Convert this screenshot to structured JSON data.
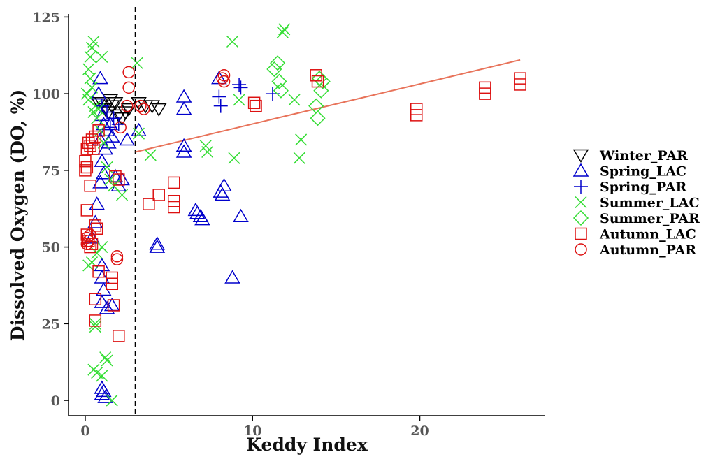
{
  "chart_data": {
    "type": "scatter",
    "title": "",
    "xlabel": "Keddy Index",
    "ylabel": "Dissolved Oxygen (DO, %)",
    "xlim": [
      -1,
      27.5
    ],
    "ylim": [
      -5,
      126
    ],
    "xticks": [
      0,
      10,
      20
    ],
    "yticks": [
      0,
      25,
      50,
      75,
      100,
      125
    ],
    "grid": false,
    "legend_position": "right",
    "threshold_line": {
      "x": 3,
      "style": "dashed"
    },
    "trend_line": {
      "x": [
        3,
        26
      ],
      "y": [
        81,
        111
      ],
      "color": "#e8735a"
    },
    "series": [
      {
        "name": "Winter_PAR",
        "marker": "triangle-down",
        "color": "#000000",
        "points": [
          [
            1.0,
            97
          ],
          [
            1.2,
            95
          ],
          [
            1.4,
            94
          ],
          [
            1.6,
            96
          ],
          [
            1.8,
            97
          ],
          [
            2.0,
            93
          ],
          [
            2.2,
            92
          ],
          [
            2.4,
            94
          ],
          [
            2.6,
            95
          ],
          [
            3.2,
            97
          ],
          [
            3.6,
            96
          ],
          [
            4.0,
            96
          ],
          [
            4.4,
            95
          ],
          [
            0.8,
            97
          ],
          [
            1.5,
            98
          ]
        ]
      },
      {
        "name": "Spring_LAC",
        "marker": "triangle-up",
        "color": "#0000cc",
        "points": [
          [
            0.4,
            53
          ],
          [
            0.6,
            58
          ],
          [
            0.7,
            64
          ],
          [
            0.8,
            100
          ],
          [
            0.9,
            105
          ],
          [
            1.0,
            93
          ],
          [
            1.1,
            90
          ],
          [
            0.9,
            85
          ],
          [
            1.2,
            82
          ],
          [
            1.0,
            78
          ],
          [
            0.9,
            71
          ],
          [
            1.1,
            74
          ],
          [
            1.3,
            88
          ],
          [
            1.4,
            84
          ],
          [
            1.5,
            90
          ],
          [
            1.6,
            86
          ],
          [
            1.8,
            73
          ],
          [
            2.0,
            70
          ],
          [
            2.2,
            72
          ],
          [
            2.5,
            85
          ],
          [
            3.2,
            88
          ],
          [
            1.0,
            44
          ],
          [
            1.0,
            40
          ],
          [
            1.1,
            36
          ],
          [
            1.0,
            32
          ],
          [
            1.3,
            30
          ],
          [
            1.6,
            31
          ],
          [
            1.0,
            4
          ],
          [
            1.0,
            2
          ],
          [
            1.1,
            3
          ],
          [
            1.2,
            1
          ],
          [
            4.3,
            51
          ],
          [
            4.3,
            50
          ],
          [
            5.9,
            99
          ],
          [
            5.9,
            95
          ],
          [
            5.9,
            83
          ],
          [
            5.9,
            81
          ],
          [
            6.6,
            62
          ],
          [
            6.7,
            61
          ],
          [
            6.9,
            60
          ],
          [
            7.0,
            59
          ],
          [
            8.0,
            105
          ],
          [
            8.1,
            68
          ],
          [
            8.2,
            67
          ],
          [
            8.3,
            70
          ],
          [
            8.8,
            40
          ],
          [
            9.3,
            60
          ]
        ]
      },
      {
        "name": "Spring_PAR",
        "marker": "plus",
        "color": "#0000cc",
        "points": [
          [
            1.0,
            96
          ],
          [
            1.3,
            94
          ],
          [
            1.7,
            92
          ],
          [
            2.0,
            90
          ],
          [
            1.5,
            89
          ],
          [
            8.0,
            99
          ],
          [
            8.1,
            96
          ],
          [
            9.2,
            103
          ],
          [
            9.3,
            102
          ],
          [
            11.2,
            100
          ]
        ]
      },
      {
        "name": "Summer_LAC",
        "marker": "x",
        "color": "#33dd33",
        "points": [
          [
            0.1,
            100
          ],
          [
            0.2,
            108
          ],
          [
            0.3,
            112
          ],
          [
            0.4,
            115
          ],
          [
            0.5,
            117
          ],
          [
            0.3,
            105
          ],
          [
            0.4,
            102
          ],
          [
            0.6,
            96
          ],
          [
            0.8,
            95
          ],
          [
            1.0,
            112
          ],
          [
            0.2,
            98
          ],
          [
            0.5,
            94
          ],
          [
            0.7,
            92
          ],
          [
            0.9,
            88
          ],
          [
            1.1,
            84
          ],
          [
            1.3,
            76
          ],
          [
            1.5,
            72
          ],
          [
            1.7,
            70
          ],
          [
            2.2,
            67
          ],
          [
            1.0,
            50
          ],
          [
            0.7,
            48
          ],
          [
            0.4,
            45
          ],
          [
            0.2,
            44
          ],
          [
            0.6,
            25
          ],
          [
            0.6,
            24
          ],
          [
            0.5,
            10
          ],
          [
            0.7,
            9
          ],
          [
            1.0,
            8
          ],
          [
            1.3,
            13
          ],
          [
            1.2,
            14
          ],
          [
            1.6,
            0
          ],
          [
            3.1,
            110
          ],
          [
            3.2,
            87
          ],
          [
            3.9,
            80
          ],
          [
            7.2,
            83
          ],
          [
            7.3,
            81
          ],
          [
            8.8,
            117
          ],
          [
            8.9,
            79
          ],
          [
            9.2,
            98
          ],
          [
            12.5,
            98
          ],
          [
            11.8,
            120
          ],
          [
            11.9,
            121
          ],
          [
            12.9,
            85
          ],
          [
            12.8,
            79
          ]
        ]
      },
      {
        "name": "Summer_PAR",
        "marker": "diamond",
        "color": "#33dd33",
        "points": [
          [
            11.3,
            108
          ],
          [
            11.5,
            110
          ],
          [
            11.6,
            104
          ],
          [
            11.7,
            101
          ],
          [
            13.8,
            96
          ],
          [
            13.9,
            92
          ],
          [
            14.0,
            105
          ],
          [
            14.1,
            101
          ],
          [
            14.2,
            104
          ]
        ]
      },
      {
        "name": "Autumn_LAC",
        "marker": "square",
        "color": "#dd1111",
        "points": [
          [
            0.1,
            82
          ],
          [
            0.2,
            84
          ],
          [
            0.3,
            83
          ],
          [
            0.4,
            85
          ],
          [
            0.5,
            82
          ],
          [
            0.6,
            86
          ],
          [
            0.8,
            88
          ],
          [
            0.0,
            78
          ],
          [
            0.0,
            75
          ],
          [
            0.1,
            76
          ],
          [
            0.1,
            62
          ],
          [
            0.3,
            70
          ],
          [
            0.1,
            54
          ],
          [
            0.2,
            52
          ],
          [
            0.3,
            50
          ],
          [
            0.4,
            51
          ],
          [
            0.6,
            57
          ],
          [
            0.7,
            56
          ],
          [
            0.8,
            42
          ],
          [
            0.6,
            33
          ],
          [
            0.6,
            26
          ],
          [
            1.6,
            40
          ],
          [
            1.6,
            38
          ],
          [
            1.7,
            31
          ],
          [
            2.0,
            21
          ],
          [
            1.8,
            73
          ],
          [
            2.0,
            72
          ],
          [
            3.8,
            64
          ],
          [
            4.4,
            67
          ],
          [
            5.3,
            71
          ],
          [
            5.3,
            65
          ],
          [
            5.3,
            63
          ],
          [
            10.1,
            97
          ],
          [
            10.2,
            96
          ],
          [
            13.8,
            106
          ],
          [
            13.9,
            104
          ],
          [
            19.8,
            95
          ],
          [
            19.8,
            93
          ],
          [
            23.9,
            102
          ],
          [
            23.9,
            100
          ],
          [
            26.0,
            105
          ],
          [
            26.0,
            103
          ]
        ]
      },
      {
        "name": "Autumn_PAR",
        "marker": "circle",
        "color": "#dd1111",
        "points": [
          [
            0.1,
            53
          ],
          [
            0.2,
            52
          ],
          [
            0.3,
            54
          ],
          [
            0.1,
            51
          ],
          [
            1.9,
            47
          ],
          [
            1.9,
            46
          ],
          [
            2.1,
            89
          ],
          [
            2.5,
            96
          ],
          [
            2.6,
            102
          ],
          [
            2.6,
            107
          ],
          [
            3.3,
            96
          ],
          [
            3.5,
            95
          ],
          [
            8.2,
            105
          ],
          [
            8.3,
            104
          ],
          [
            8.3,
            106
          ]
        ]
      }
    ]
  }
}
